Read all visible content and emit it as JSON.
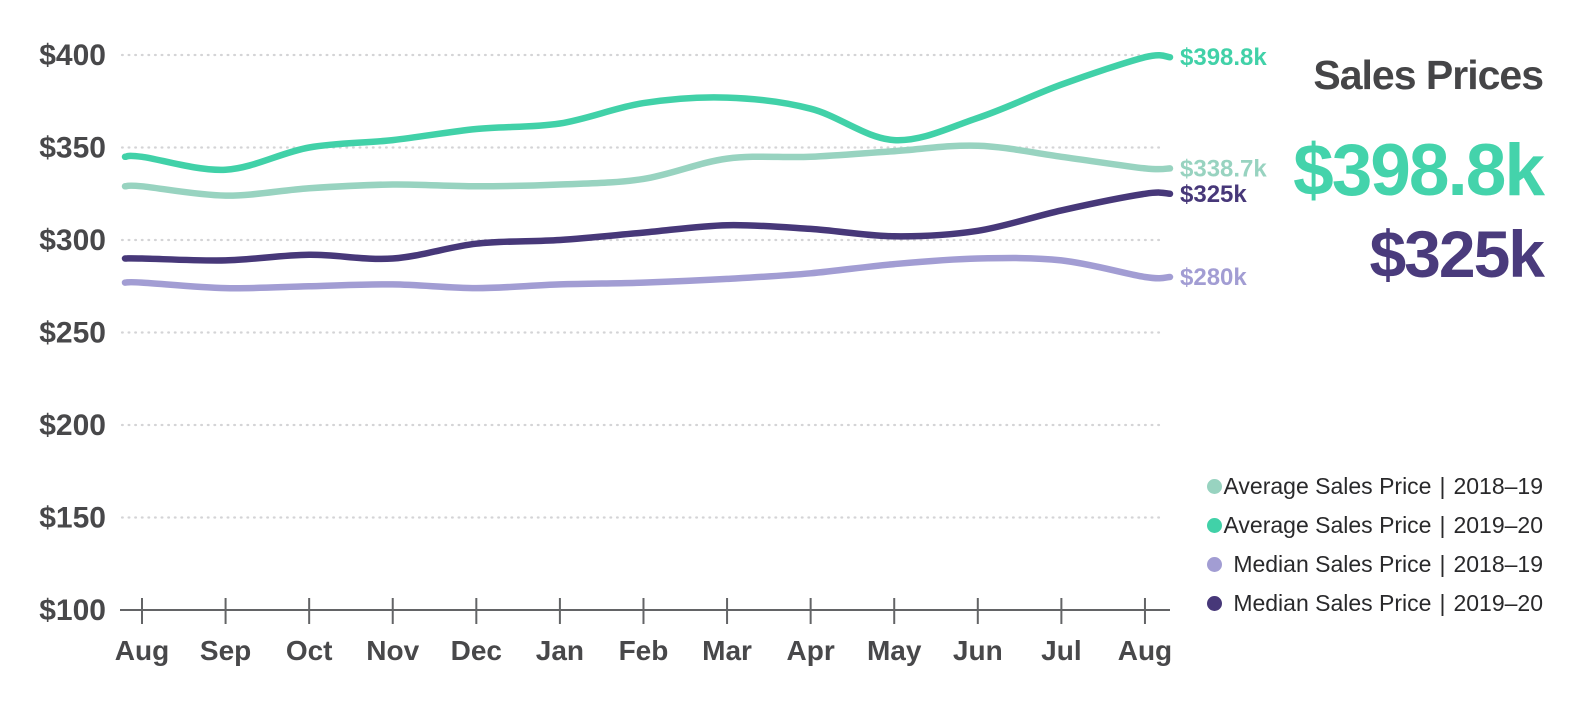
{
  "panel": {
    "title": "Sales Prices",
    "highlight_primary": {
      "text": "$398.8k",
      "color": "#44d3ab"
    },
    "highlight_secondary": {
      "text": "$325k",
      "color": "#4a3b7c"
    },
    "legend": [
      {
        "label": "Average Sales Price",
        "separator": "|",
        "period": "2018–19",
        "color": "#98d3c0"
      },
      {
        "label": "Average Sales Price",
        "separator": "|",
        "period": "2019–20",
        "color": "#41d1a8"
      },
      {
        "label": "Median Sales Price",
        "separator": "|",
        "period": "2018–19",
        "color": "#a29dd3"
      },
      {
        "label": "Median Sales Price",
        "separator": "|",
        "period": "2019–20",
        "color": "#473879"
      }
    ]
  },
  "chart_data": {
    "type": "line",
    "title": "Sales Prices",
    "categories": [
      "Aug",
      "Sep",
      "Oct",
      "Nov",
      "Dec",
      "Jan",
      "Feb",
      "Mar",
      "Apr",
      "May",
      "Jun",
      "Jul",
      "Aug"
    ],
    "y_ticks": [
      400,
      350,
      300,
      250,
      200,
      150,
      100
    ],
    "y_tick_labels": [
      "$400",
      "$350",
      "$300",
      "$250",
      "$200",
      "$150",
      "$100"
    ],
    "ylim": [
      100,
      415
    ],
    "unit": "USD thousands",
    "grid": "dotted horizontal gridlines at $50 intervals",
    "legend_position": "right side, below highlight values",
    "series": [
      {
        "name": "Average Sales Price | 2018–19",
        "color": "#98d3c0",
        "end_label": "$338.7k",
        "values": [
          329,
          324,
          328,
          330,
          329,
          330,
          333,
          344,
          345,
          348,
          351,
          345,
          338.7
        ]
      },
      {
        "name": "Average Sales Price | 2019–20",
        "color": "#41d1a8",
        "end_label": "$398.8k",
        "values": [
          345,
          338,
          350,
          354,
          360,
          363,
          374,
          377,
          371,
          354,
          366,
          384,
          398.8
        ]
      },
      {
        "name": "Median Sales Price | 2018–19",
        "color": "#a29dd3",
        "end_label": "$280k",
        "values": [
          277,
          274,
          275,
          276,
          274,
          276,
          277,
          279,
          282,
          287,
          290,
          289,
          280
        ]
      },
      {
        "name": "Median Sales Price | 2019–20",
        "color": "#473879",
        "end_label": "$325k",
        "values": [
          290,
          289,
          292,
          290,
          298,
          300,
          304,
          308,
          306,
          302,
          305,
          316,
          325
        ]
      }
    ]
  }
}
